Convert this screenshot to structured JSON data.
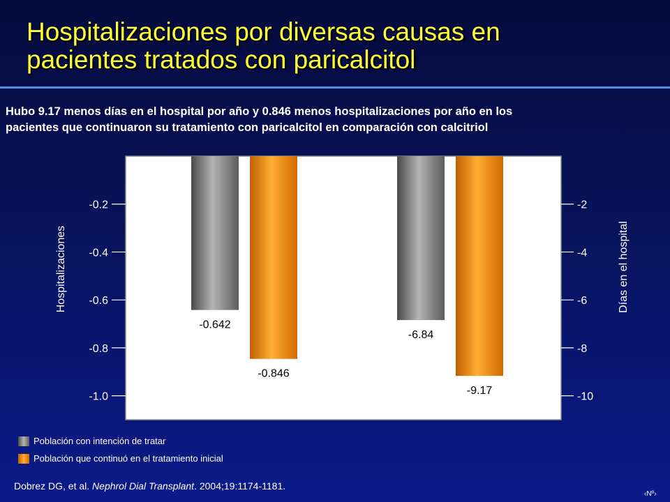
{
  "slide": {
    "title_line1": "Hospitalizaciones por diversas causas en",
    "title_line2": "pacientes tratados con paricalcitol",
    "subtitle_line1": "Hubo 9.17 menos días en el hospital por año y 0.846 menos hospitalizaciones por año en los",
    "subtitle_line2": "pacientes que continuaron su tratamiento con paricalcitol en comparación con calcitriol",
    "citation_authors": "Dobrez DG, et al. ",
    "citation_journal": "Nephrol Dial Transplant",
    "citation_rest": ". 2004;19:1174-1181.",
    "slide_number": "‹Nº›"
  },
  "legend": [
    {
      "label": "Población con intención de tratar",
      "color": "#8c8c8c"
    },
    {
      "label": "Población que continuó en el tratamiento inicial",
      "color": "#ff8c00"
    }
  ],
  "chart_data": {
    "type": "bar",
    "background": "#ffffff",
    "grid": false,
    "legend_position": "bottom-left",
    "axes": {
      "left": {
        "label": "Hospitalizaciones",
        "ticks": [
          -0.2,
          -0.4,
          -0.6,
          -0.8,
          -1.0
        ],
        "tick_labels": [
          "-0.2",
          "-0.4",
          "-0.6",
          "-0.8",
          "-1.0"
        ],
        "range": [
          0,
          -1.1
        ]
      },
      "right": {
        "label": "Días en el hospital",
        "ticks": [
          -2,
          -4,
          -6,
          -8,
          -10
        ],
        "tick_labels": [
          "-2",
          "-4",
          "-6",
          "-8",
          "-10"
        ],
        "range": [
          0,
          -11
        ]
      }
    },
    "groups": [
      {
        "axis": "left",
        "bars": [
          {
            "series": "Población con intención de tratar",
            "value": -0.642,
            "label": "-0.642",
            "color": "#8c8c8c"
          },
          {
            "series": "Población que continuó en el tratamiento inicial",
            "value": -0.846,
            "label": "-0.846",
            "color": "#ff8c00"
          }
        ]
      },
      {
        "axis": "right",
        "bars": [
          {
            "series": "Población con intención de tratar",
            "value": -6.84,
            "label": "-6.84",
            "color": "#8c8c8c"
          },
          {
            "series": "Población que continuó en el tratamiento inicial",
            "value": -9.17,
            "label": "-9.17",
            "color": "#ff8c00"
          }
        ]
      }
    ]
  }
}
